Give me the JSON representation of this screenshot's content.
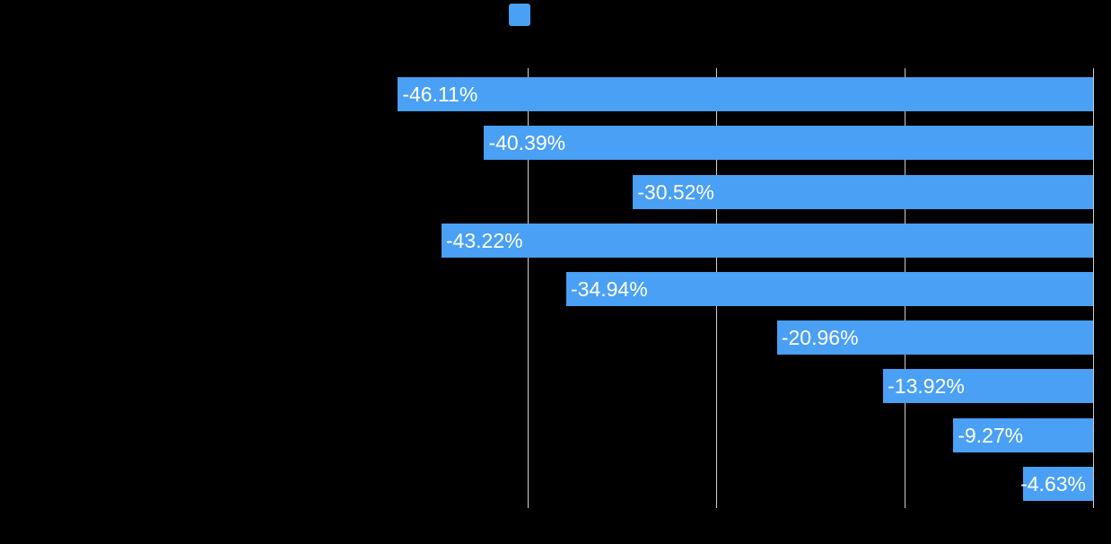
{
  "canvas": {
    "background_color": "#000000"
  },
  "legend": {
    "position": "top-center",
    "swatch_color": "#4AA0F4"
  },
  "chart_data": {
    "type": "bar",
    "orientation": "horizontal",
    "title": "",
    "xlabel": "",
    "ylabel": "",
    "values": [
      -46.11,
      -40.39,
      -30.52,
      -43.22,
      -34.94,
      -20.96,
      -13.92,
      -9.27,
      -4.63
    ],
    "data_labels": [
      "-46.11%",
      "-40.39%",
      "-30.52%",
      "-43.22%",
      "-34.94%",
      "-20.96%",
      "-13.92%",
      "-9.27%",
      "-4.63%"
    ],
    "xlim": [
      -50,
      0
    ],
    "x_gridlines": [
      -37.5,
      -25,
      -12.5,
      0
    ],
    "grid": "vertical",
    "bar_color": "#4AA0F4",
    "data_label_color": "#FFFFFF",
    "gridline_color": "#CFCFCF",
    "bars_anchor": "right-aligned-at-zero"
  }
}
